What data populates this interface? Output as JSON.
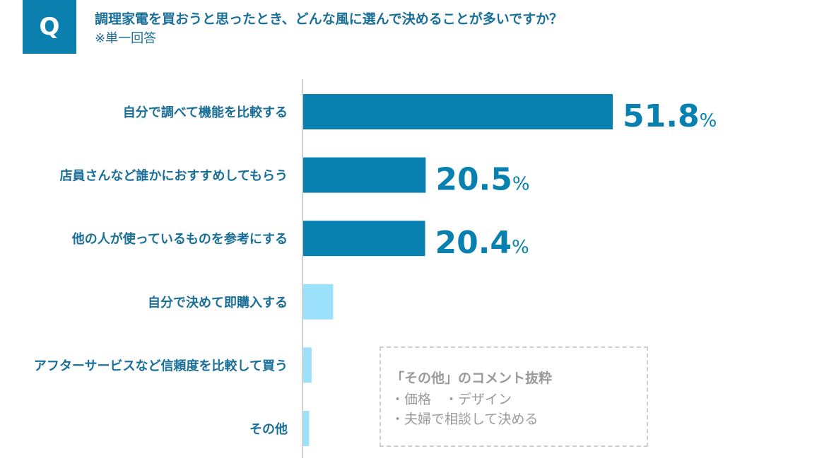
{
  "header": {
    "q_label": "Q",
    "question": "調理家電を買おうと思ったとき、どんな風に選んで決めることが多いですか？",
    "note": "※単一回答"
  },
  "chart_data": {
    "type": "bar",
    "orientation": "horizontal",
    "title": "調理家電を買おうと思ったとき、どんな風に選んで決めることが多いですか？",
    "categories": [
      "自分で調べて機能を比較する",
      "店員さんなど誰かにおすすめしてもらう",
      "他の人が使っているものを参考にする",
      "自分で決めて即購入する",
      "アフターサービスなど信頼度を比較して買う",
      "その他"
    ],
    "values": [
      51.8,
      20.5,
      20.4,
      5.0,
      1.4,
      1.0
    ],
    "value_labels": [
      "51.8",
      "20.5",
      "20.4",
      "",
      "",
      ""
    ],
    "unit": "%",
    "xlim": [
      0,
      60
    ],
    "highlight_count": 3,
    "colors": {
      "highlight": "#0881b0",
      "other": "#9be1fb",
      "label": "#1a6f98",
      "axis": "#d0d0d0"
    }
  },
  "comment_box": {
    "title": "「その他」のコメント抜粋",
    "lines": [
      "・価格　・デザイン",
      "・夫婦で相談して決める"
    ]
  }
}
